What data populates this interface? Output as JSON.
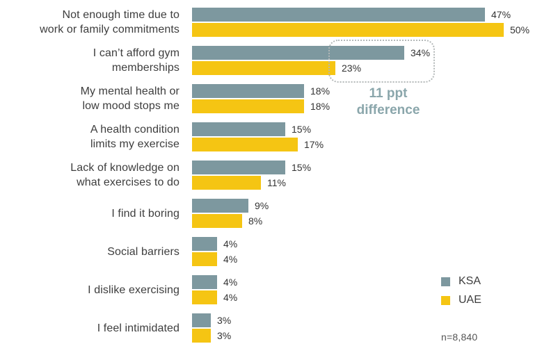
{
  "chart_data": {
    "type": "bar",
    "orientation": "horizontal",
    "categories": [
      "Not enough time due to work or family commitments",
      "I can’t afford gym memberships",
      "My mental health or low mood stops me",
      "A health condition limits my exercise",
      "Lack of knowledge on what exercises to do",
      "I find it boring",
      "Social barriers",
      "I dislike exercising",
      "I feel intimidated"
    ],
    "category_lines": [
      [
        "Not enough time due to",
        "work or family commitments"
      ],
      [
        "I can’t afford gym",
        "memberships"
      ],
      [
        "My mental health or",
        "low mood stops me"
      ],
      [
        "A health condition",
        "limits my exercise"
      ],
      [
        "Lack of knowledge on",
        "what exercises to do"
      ],
      [
        "I find it boring"
      ],
      [
        "Social barriers"
      ],
      [
        "I dislike exercising"
      ],
      [
        "I feel intimidated"
      ]
    ],
    "series": [
      {
        "name": "KSA",
        "color": "#7d989f",
        "values": [
          47,
          34,
          18,
          15,
          15,
          9,
          4,
          4,
          3
        ]
      },
      {
        "name": "UAE",
        "color": "#f5c513",
        "values": [
          50,
          23,
          18,
          17,
          11,
          8,
          4,
          4,
          3
        ]
      }
    ],
    "value_suffix": "%",
    "xlim": [
      0,
      52
    ],
    "grid": false,
    "legend_position": "bottom-right",
    "annotation": {
      "line1": "11 ppt",
      "line2": "difference",
      "target_category": "I can’t afford gym memberships",
      "text_color": "#8aa6ab"
    },
    "sample_size": "n=8,840"
  }
}
